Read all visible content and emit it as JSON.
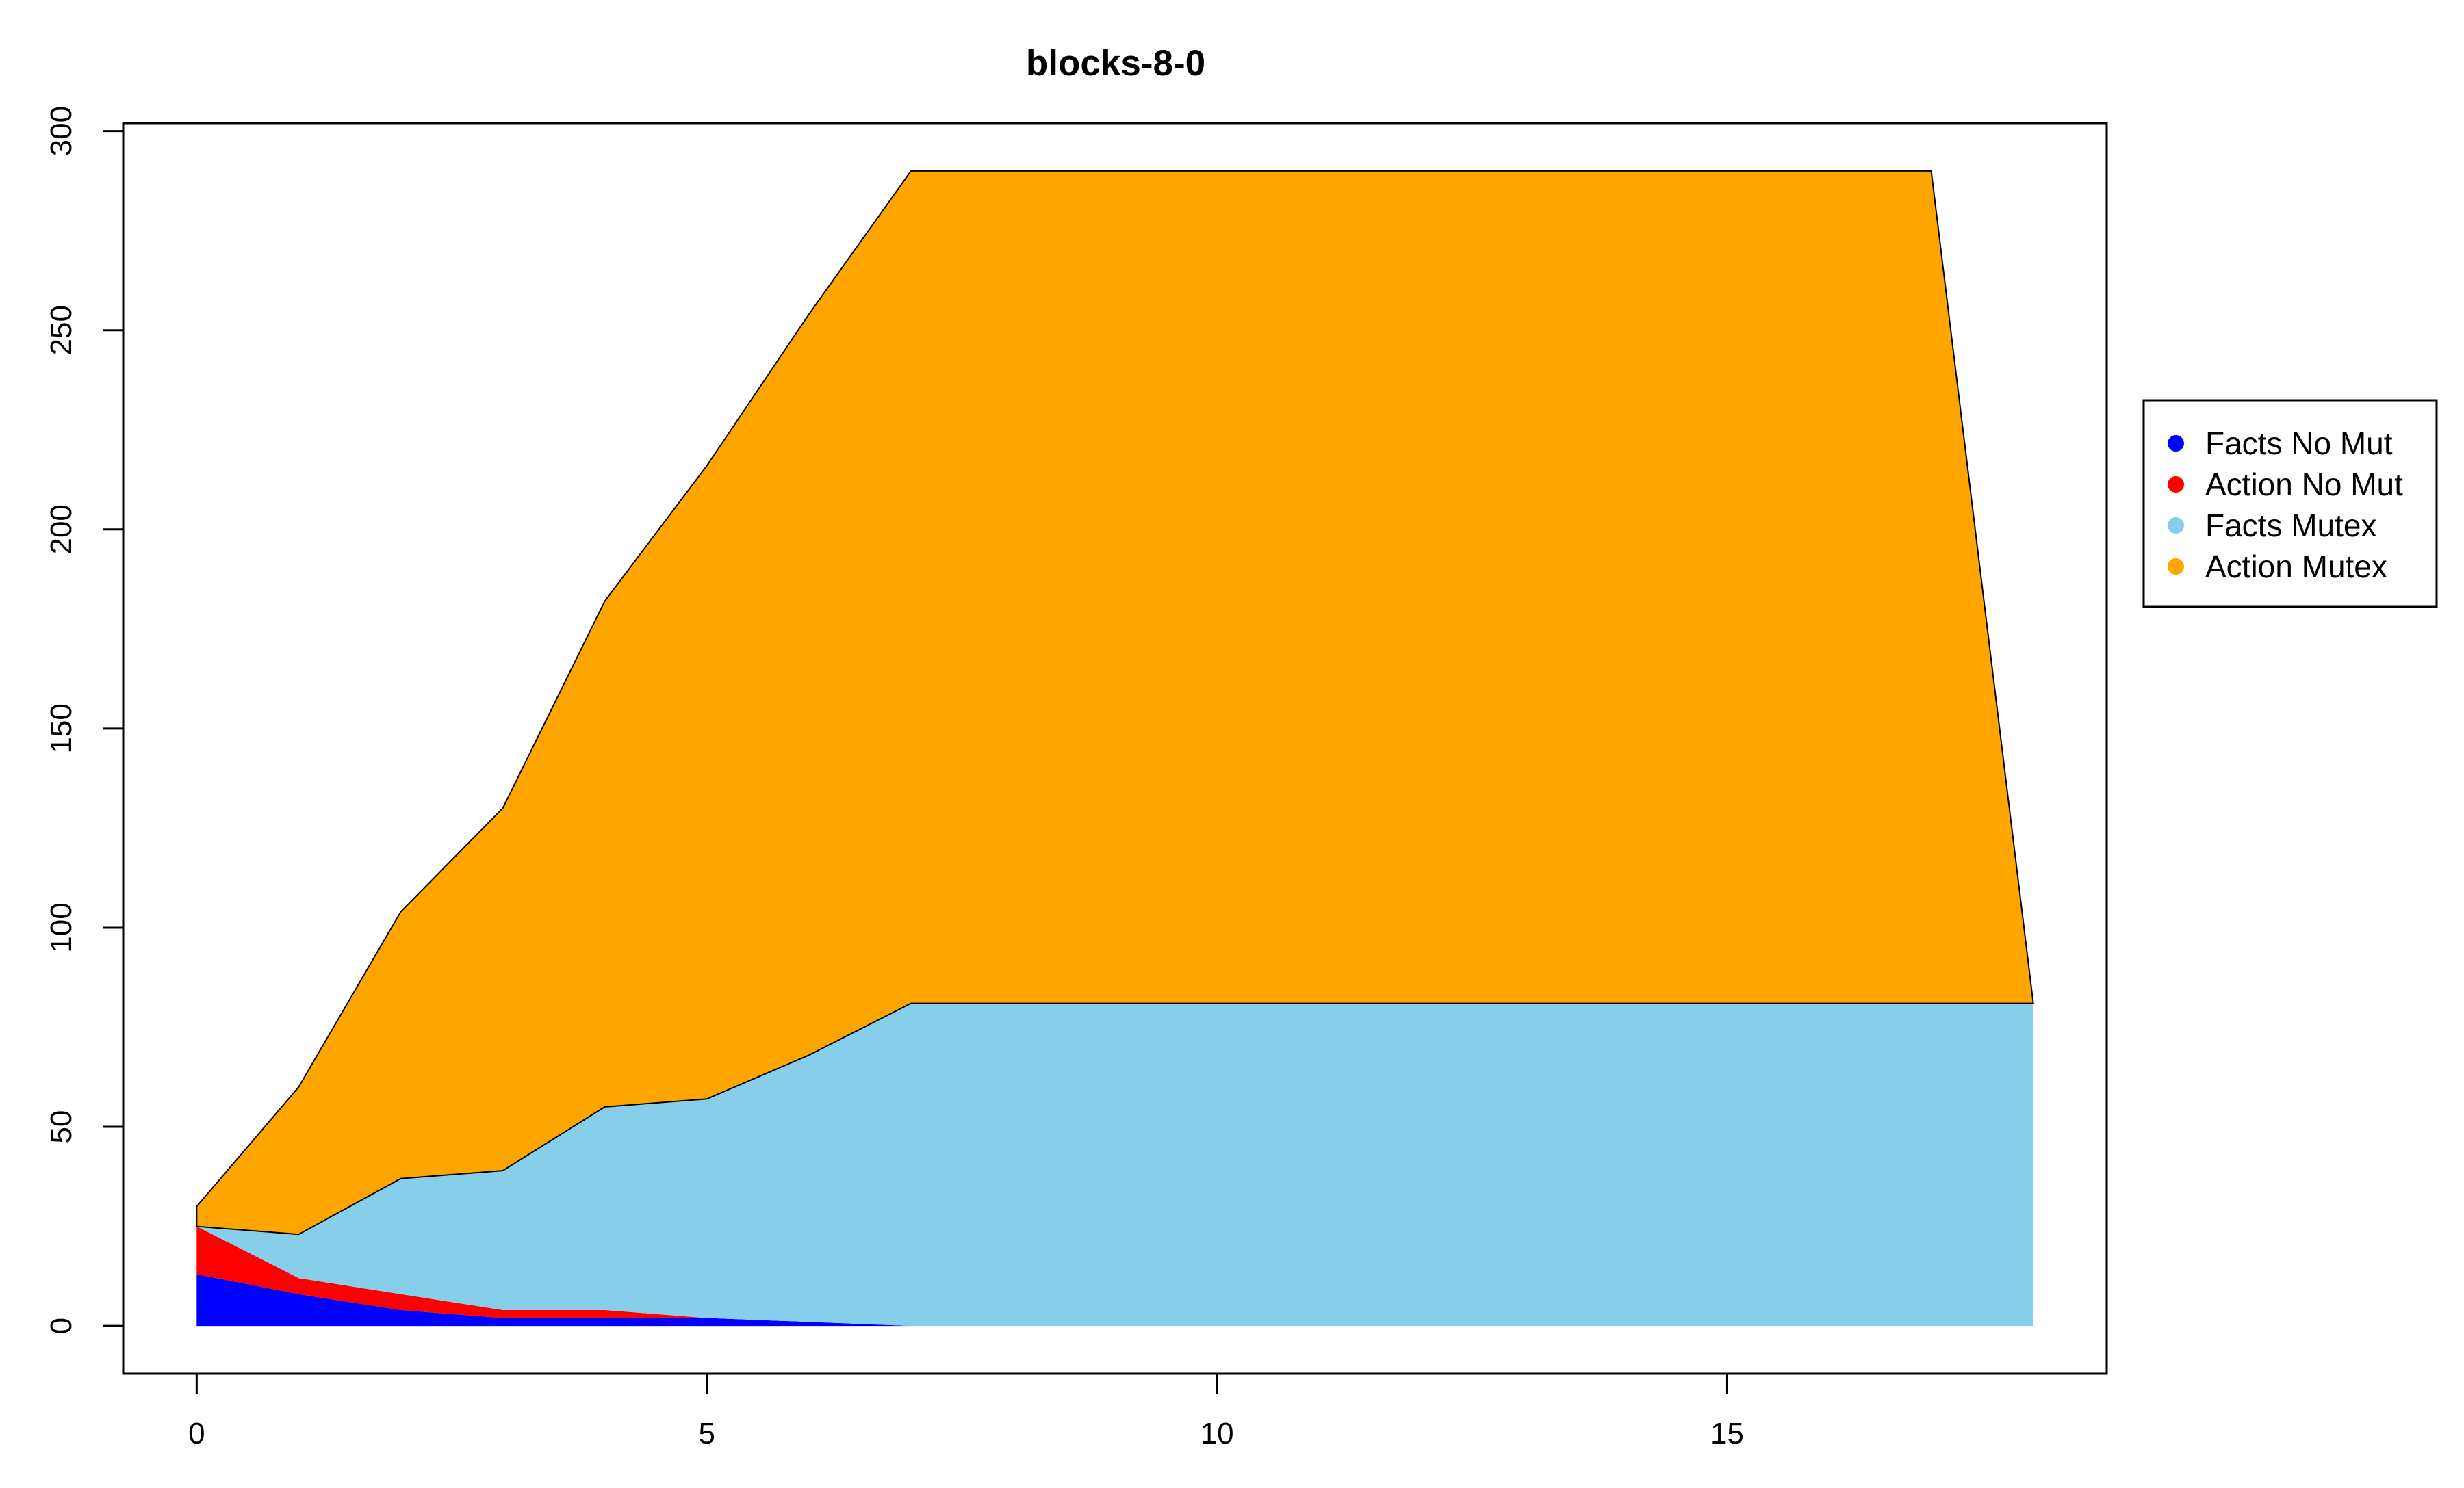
{
  "chart_data": {
    "type": "area",
    "stacked": true,
    "title": "blocks-8-0",
    "xlabel": "",
    "ylabel": "",
    "x": [
      0,
      1,
      2,
      3,
      4,
      5,
      6,
      7,
      8,
      9,
      10,
      11,
      12,
      13,
      14,
      15,
      16,
      17,
      18
    ],
    "xlim": [
      -0.72,
      18.72
    ],
    "ylim": [
      -12,
      302
    ],
    "xticks": [
      0,
      5,
      10,
      15
    ],
    "yticks": [
      0,
      50,
      100,
      150,
      200,
      250,
      300
    ],
    "series": [
      {
        "name": "Facts No Mut",
        "color": "#0000ff",
        "values": [
          13,
          8,
          4,
          2,
          2,
          2,
          1,
          0,
          0,
          0,
          0,
          0,
          0,
          0,
          0,
          0,
          0,
          0,
          0
        ]
      },
      {
        "name": "Action No Mut",
        "color": "#ff0000",
        "values": [
          12,
          4,
          4,
          2,
          2,
          0,
          0,
          0,
          0,
          0,
          0,
          0,
          0,
          0,
          0,
          0,
          0,
          0,
          0
        ]
      },
      {
        "name": "Facts Mutex",
        "color": "#87ceeb",
        "values": [
          0,
          11,
          29,
          35,
          51,
          55,
          67,
          81,
          81,
          81,
          81,
          81,
          81,
          81,
          81,
          81,
          81,
          81,
          81
        ]
      },
      {
        "name": "Action Mutex",
        "color": "#ffa500",
        "values": [
          5,
          37,
          67,
          91,
          127,
          159,
          186,
          209,
          209,
          209,
          209,
          209,
          209,
          209,
          209,
          209,
          209,
          209,
          0
        ]
      }
    ],
    "legend": "right",
    "grid": false
  }
}
